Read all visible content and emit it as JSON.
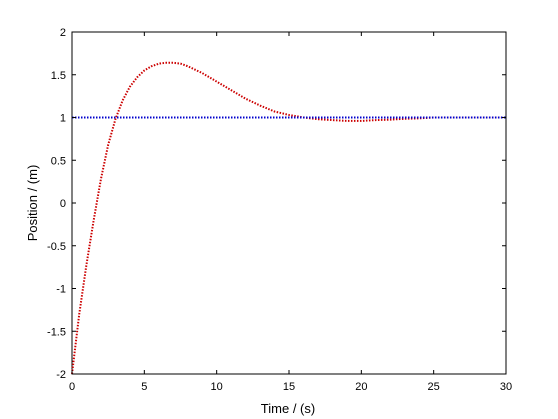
{
  "chart_data": {
    "type": "line",
    "title": "",
    "xlabel": "Time / (s)",
    "ylabel": "Position / (m)",
    "xlim": [
      0,
      30
    ],
    "ylim": [
      -2,
      2
    ],
    "x_ticks": [
      0,
      5,
      10,
      15,
      20,
      25,
      30
    ],
    "y_ticks": [
      -2,
      -1.5,
      -1,
      -0.5,
      0,
      0.5,
      1,
      1.5,
      2
    ],
    "x_tick_labels": [
      "0",
      "5",
      "10",
      "15",
      "20",
      "25",
      "30"
    ],
    "y_tick_labels": [
      "-2",
      "-1.5",
      "-1",
      "-0.5",
      "0",
      "0.5",
      "1",
      "1.5",
      "2"
    ],
    "grid": false,
    "series": [
      {
        "color": "#cc0000",
        "line_style": "dotted",
        "x": [
          0,
          0.5,
          1,
          1.5,
          2,
          2.5,
          3,
          3.5,
          4,
          4.5,
          5,
          5.5,
          6,
          6.5,
          7,
          7.5,
          8,
          9,
          10,
          11,
          12,
          13,
          14,
          15,
          16,
          17,
          18,
          19,
          20,
          21,
          22,
          23,
          24,
          25,
          26,
          27,
          28,
          29,
          30
        ],
        "y": [
          -2.0,
          -1.3,
          -0.72,
          -0.2,
          0.28,
          0.68,
          0.98,
          1.2,
          1.36,
          1.47,
          1.55,
          1.6,
          1.63,
          1.64,
          1.64,
          1.63,
          1.6,
          1.52,
          1.42,
          1.32,
          1.22,
          1.14,
          1.07,
          1.03,
          1.0,
          0.98,
          0.97,
          0.96,
          0.96,
          0.97,
          0.975,
          0.985,
          0.99,
          1.0,
          1.0,
          1.0,
          1.0,
          1.0,
          1.0
        ]
      },
      {
        "color": "#0000cc",
        "line_style": "dotted",
        "x": [
          0,
          30
        ],
        "y": [
          1,
          1
        ]
      }
    ]
  }
}
